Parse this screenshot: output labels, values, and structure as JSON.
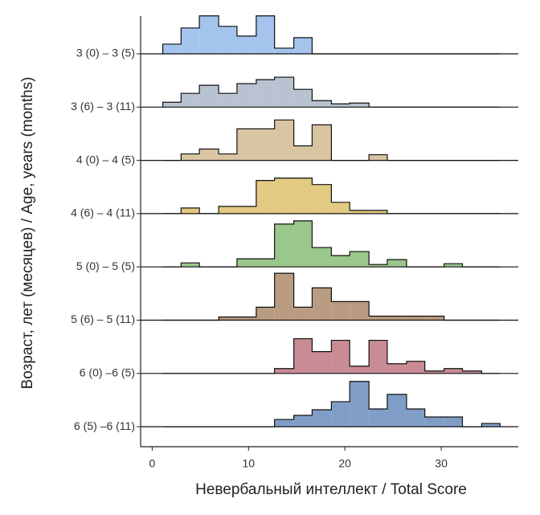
{
  "chart_data": {
    "type": "ridgeline-histogram",
    "xlabel": "Невербальный интеллект / Total Score",
    "ylabel": "Возраст, лет (месяцев) / Age, years (months)",
    "xlim": [
      -1.2,
      38
    ],
    "xticks": [
      0,
      10,
      20,
      30
    ],
    "bins": [
      1.1,
      3.0,
      4.9,
      6.9,
      8.8,
      10.8,
      12.7,
      14.7,
      16.6,
      18.6,
      20.5,
      22.5,
      24.4,
      26.4,
      28.3,
      30.3,
      32.2,
      34.2,
      36.1
    ],
    "series": [
      {
        "name": "3 (0) – 3 (5)",
        "color": "#a4c4ee",
        "values": [
          12,
          32,
          47,
          34,
          22,
          47,
          7,
          20,
          0,
          0,
          0,
          0,
          0,
          0,
          0,
          0,
          0,
          0
        ]
      },
      {
        "name": "3 (6) – 3 (11)",
        "color": "#b9c2d0",
        "values": [
          6,
          17,
          27,
          17,
          29,
          34,
          37,
          22,
          8,
          4,
          5,
          0,
          0,
          0,
          0,
          0,
          0,
          0
        ]
      },
      {
        "name": "4 (0) – 4 (5)",
        "color": "#dac5a3",
        "values": [
          0,
          8,
          14,
          8,
          39,
          39,
          50,
          18,
          44,
          0,
          0,
          7,
          0,
          0,
          0,
          0,
          0,
          0
        ]
      },
      {
        "name": "4 (6) – 4 (11)",
        "color": "#e3ca82",
        "values": [
          0,
          7,
          0,
          9,
          9,
          41,
          44,
          44,
          36,
          14,
          4,
          4,
          0,
          0,
          0,
          0,
          0,
          0
        ]
      },
      {
        "name": "5 (0) – 5 (5)",
        "color": "#9ac78b",
        "values": [
          0,
          5,
          0,
          0,
          10,
          10,
          53,
          57,
          24,
          14,
          19,
          3,
          9,
          0,
          0,
          4,
          0,
          0
        ]
      },
      {
        "name": "5 (6) – 5 (11)",
        "color": "#b99c81",
        "values": [
          0,
          0,
          0,
          4,
          4,
          16,
          58,
          16,
          40,
          23,
          23,
          5,
          5,
          5,
          5,
          0,
          0,
          0
        ]
      },
      {
        "name": "6 (0) –6 (5)",
        "color": "#c98b94",
        "values": [
          0,
          0,
          0,
          0,
          0,
          0,
          6,
          43,
          27,
          41,
          9,
          41,
          12,
          15,
          3,
          6,
          3,
          0
        ]
      },
      {
        "name": "6 (5) –6 (11)",
        "color": "#809dc7",
        "values": [
          0,
          0,
          0,
          0,
          0,
          0,
          9,
          14,
          21,
          31,
          56,
          22,
          40,
          22,
          12,
          12,
          0,
          4
        ]
      }
    ]
  }
}
